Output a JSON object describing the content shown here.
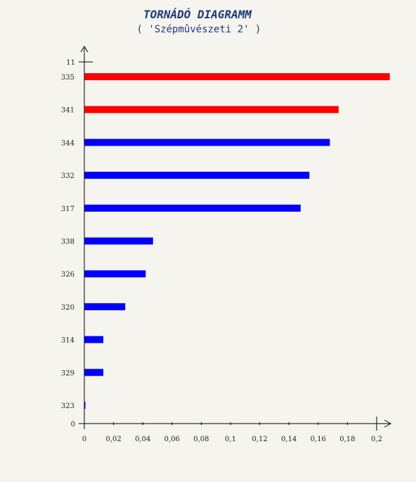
{
  "chart_data": {
    "type": "bar",
    "orientation": "horizontal",
    "title": "TORNÁDÓ DIAGRAMM",
    "subtitle": "( 'Szépmûvészeti 2' )",
    "categories": [
      "335",
      "341",
      "344",
      "332",
      "317",
      "338",
      "326",
      "320",
      "314",
      "329",
      "323"
    ],
    "values": [
      0.209,
      0.174,
      0.168,
      0.154,
      0.148,
      0.047,
      0.042,
      0.028,
      0.013,
      0.013,
      0.0005
    ],
    "colors": [
      "#ff0000",
      "#ff0000",
      "#0000ff",
      "#0000ff",
      "#0000ff",
      "#0000ff",
      "#0000ff",
      "#0000ff",
      "#0000ff",
      "#0000ff",
      "#0000ff"
    ],
    "y_axis_top_label": "11",
    "y_axis_bottom_label": "0",
    "xticks": [
      "0",
      "0,02",
      "0,04",
      "0,06",
      "0,08",
      "0,1",
      "0,12",
      "0,14",
      "0,16",
      "0,18",
      "0,2"
    ],
    "xlim": [
      0,
      0.2
    ],
    "grid": false,
    "legend": "none"
  }
}
